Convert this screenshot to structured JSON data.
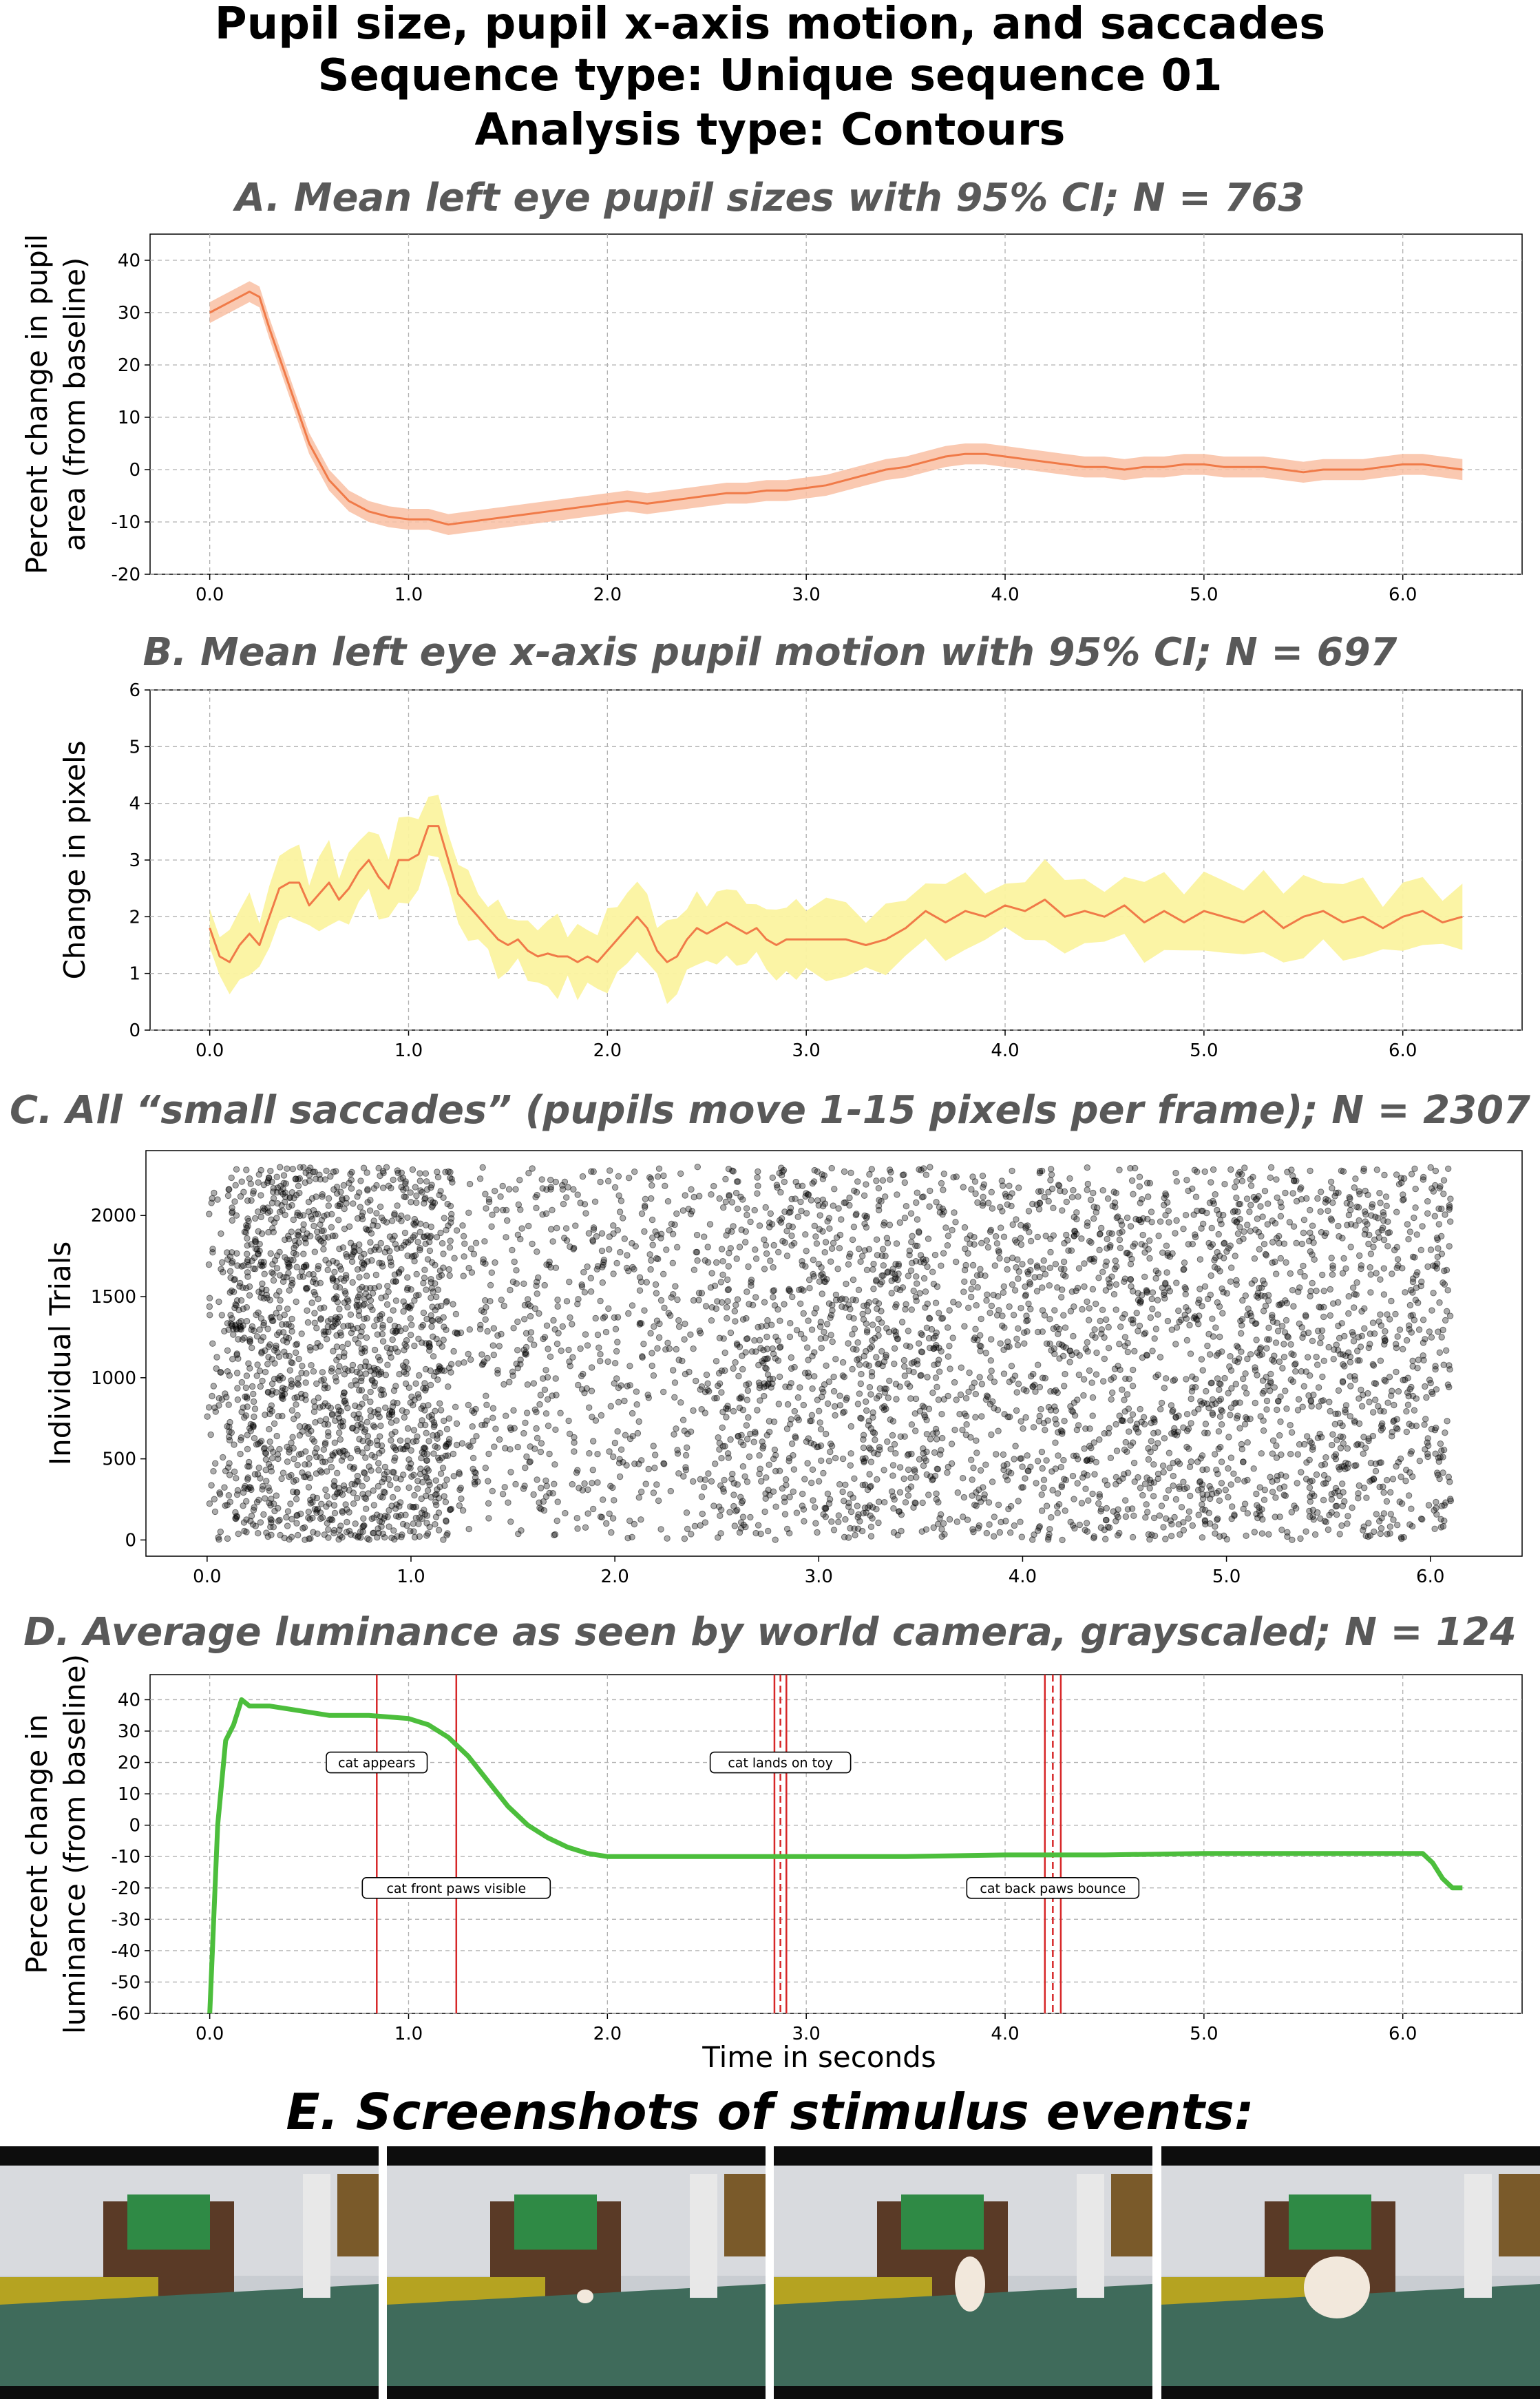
{
  "figure": {
    "title_lines": [
      "Pupil size, pupil x-axis motion, and saccades",
      "Sequence type: Unique sequence 01",
      "Analysis type: Contours"
    ],
    "xlabel": "Time in seconds",
    "screenshots_title": "E. Screenshots of stimulus events:"
  },
  "colors": {
    "pupil_size_line": "#f07a48",
    "pupil_size_ci": "#f9bfa3",
    "motion_line": "#f07a48",
    "motion_ci": "#fbf3a0",
    "scatter": "#000000",
    "luminance": "#4cbe3c",
    "event_line": "#d62728"
  },
  "chart_data": [
    {
      "panel": "A",
      "type": "line",
      "title": "A. Mean left eye pupil sizes with 95% CI; N = 763",
      "ylabel": "Percent change in pupil area (from baseline)",
      "ylabel_lines": [
        "Percent change in pupil",
        "area (from baseline)"
      ],
      "xlim": [
        -0.3,
        6.6
      ],
      "ylim": [
        -20,
        45
      ],
      "xticks": [
        "0.0",
        "1.0",
        "2.0",
        "3.0",
        "4.0",
        "5.0",
        "6.0"
      ],
      "yticks": [
        "-20",
        "-10",
        "0",
        "10",
        "20",
        "30",
        "40"
      ],
      "grid": true,
      "x": [
        0.0,
        0.1,
        0.2,
        0.25,
        0.3,
        0.4,
        0.5,
        0.6,
        0.7,
        0.8,
        0.9,
        1.0,
        1.1,
        1.2,
        1.3,
        1.4,
        1.5,
        1.6,
        1.7,
        1.8,
        1.9,
        2.0,
        2.1,
        2.2,
        2.3,
        2.4,
        2.5,
        2.6,
        2.7,
        2.8,
        2.9,
        3.0,
        3.1,
        3.2,
        3.3,
        3.4,
        3.5,
        3.6,
        3.7,
        3.8,
        3.9,
        4.0,
        4.1,
        4.2,
        4.3,
        4.4,
        4.5,
        4.6,
        4.7,
        4.8,
        4.9,
        5.0,
        5.1,
        5.2,
        5.3,
        5.4,
        5.5,
        5.6,
        5.7,
        5.8,
        5.9,
        6.0,
        6.1,
        6.2,
        6.3
      ],
      "series": [
        {
          "values": [
            30,
            32,
            34,
            33,
            27,
            16,
            5,
            -2,
            -6,
            -8,
            -9,
            -9.5,
            -9.5,
            -10.5,
            -10,
            -9.5,
            -9,
            -8.5,
            -8,
            -7.5,
            -7,
            -6.5,
            -6,
            -6.5,
            -6,
            -5.5,
            -5,
            -4.5,
            -4.5,
            -4,
            -4,
            -3.5,
            -3,
            -2,
            -1,
            0,
            0.5,
            1.5,
            2.5,
            3,
            3,
            2.5,
            2,
            1.5,
            1,
            0.5,
            0.5,
            0,
            0.5,
            0.5,
            1,
            1,
            0.5,
            0.5,
            0.5,
            0,
            -0.5,
            0,
            0,
            0,
            0.5,
            1,
            1,
            0.5,
            0
          ],
          "ci_halfwidth": 2
        }
      ]
    },
    {
      "panel": "B",
      "type": "line",
      "title": "B. Mean left eye x-axis pupil motion with 95% CI; N = 697",
      "ylabel": "Change in pixels",
      "xlim": [
        -0.3,
        6.6
      ],
      "ylim": [
        0,
        6
      ],
      "xticks": [
        "0.0",
        "1.0",
        "2.0",
        "3.0",
        "4.0",
        "5.0",
        "6.0"
      ],
      "yticks": [
        "0",
        "1",
        "2",
        "3",
        "4",
        "5",
        "6"
      ],
      "grid": true,
      "x": [
        0.0,
        0.05,
        0.1,
        0.15,
        0.2,
        0.25,
        0.3,
        0.35,
        0.4,
        0.45,
        0.5,
        0.55,
        0.6,
        0.65,
        0.7,
        0.75,
        0.8,
        0.85,
        0.9,
        0.95,
        1.0,
        1.05,
        1.1,
        1.15,
        1.2,
        1.25,
        1.3,
        1.35,
        1.4,
        1.45,
        1.5,
        1.55,
        1.6,
        1.65,
        1.7,
        1.75,
        1.8,
        1.85,
        1.9,
        1.95,
        2.0,
        2.05,
        2.1,
        2.15,
        2.2,
        2.25,
        2.3,
        2.35,
        2.4,
        2.45,
        2.5,
        2.55,
        2.6,
        2.65,
        2.7,
        2.75,
        2.8,
        2.85,
        2.9,
        2.95,
        3.0,
        3.1,
        3.2,
        3.3,
        3.4,
        3.5,
        3.6,
        3.7,
        3.8,
        3.9,
        4.0,
        4.1,
        4.2,
        4.3,
        4.4,
        4.5,
        4.6,
        4.7,
        4.8,
        4.9,
        5.0,
        5.1,
        5.2,
        5.3,
        5.4,
        5.5,
        5.6,
        5.7,
        5.8,
        5.9,
        6.0,
        6.1,
        6.2,
        6.3
      ],
      "series": [
        {
          "values": [
            1.8,
            1.3,
            1.2,
            1.5,
            1.7,
            1.5,
            2.0,
            2.5,
            2.6,
            2.6,
            2.2,
            2.4,
            2.6,
            2.3,
            2.5,
            2.8,
            3.0,
            2.7,
            2.5,
            3.0,
            3.0,
            3.1,
            3.6,
            3.6,
            3.0,
            2.4,
            2.2,
            2.0,
            1.8,
            1.6,
            1.5,
            1.6,
            1.4,
            1.3,
            1.35,
            1.3,
            1.3,
            1.2,
            1.3,
            1.2,
            1.4,
            1.6,
            1.8,
            2.0,
            1.8,
            1.4,
            1.2,
            1.3,
            1.6,
            1.8,
            1.7,
            1.8,
            1.9,
            1.8,
            1.7,
            1.8,
            1.6,
            1.5,
            1.6,
            1.6,
            1.6,
            1.6,
            1.6,
            1.5,
            1.6,
            1.8,
            2.1,
            1.9,
            2.1,
            2.0,
            2.2,
            2.1,
            2.3,
            2.0,
            2.1,
            2.0,
            2.2,
            1.9,
            2.1,
            1.9,
            2.1,
            2.0,
            1.9,
            2.1,
            1.8,
            2.0,
            2.1,
            1.9,
            2.0,
            1.8,
            2.0,
            2.1,
            1.9,
            2.0
          ],
          "ci_halfwidth": 0.55
        }
      ]
    },
    {
      "panel": "C",
      "type": "scatter",
      "title": "C. All “small saccades” (pupils move 1-15 pixels per frame); N = 2307",
      "ylabel": "Individual Trials",
      "xlim": [
        -0.3,
        6.45
      ],
      "ylim": [
        -100,
        2400
      ],
      "xticks": [
        "0.0",
        "1.0",
        "2.0",
        "3.0",
        "4.0",
        "5.0",
        "6.0"
      ],
      "yticks": [
        "0",
        "500",
        "1000",
        "1500",
        "2000"
      ],
      "grid": false,
      "points_note": "dense scatter; higher density between 0.1 and 1.2 s",
      "density_by_second": [
        {
          "x_range": [
            0.0,
            0.1
          ],
          "relative_density": 0.6
        },
        {
          "x_range": [
            0.1,
            1.2
          ],
          "relative_density": 1.6
        },
        {
          "x_range": [
            1.2,
            2.5
          ],
          "relative_density": 0.55
        },
        {
          "x_range": [
            2.5,
            6.1
          ],
          "relative_density": 0.9
        }
      ]
    },
    {
      "panel": "D",
      "type": "line",
      "title": "D. Average luminance as seen by world camera, grayscaled; N = 124",
      "ylabel": "Percent change in luminance (from baseline)",
      "ylabel_lines": [
        "Percent change in",
        "luminance (from baseline)"
      ],
      "xlabel": "Time in seconds",
      "xlim": [
        -0.3,
        6.6
      ],
      "ylim": [
        -60,
        48
      ],
      "xticks": [
        "0.0",
        "1.0",
        "2.0",
        "3.0",
        "4.0",
        "5.0",
        "6.0"
      ],
      "yticks": [
        "-60",
        "-50",
        "-40",
        "-30",
        "-20",
        "-10",
        "0",
        "10",
        "20",
        "30",
        "40"
      ],
      "grid": true,
      "x": [
        0.0,
        0.04,
        0.08,
        0.12,
        0.16,
        0.2,
        0.3,
        0.4,
        0.6,
        0.8,
        1.0,
        1.1,
        1.2,
        1.3,
        1.4,
        1.5,
        1.6,
        1.7,
        1.8,
        1.9,
        2.0,
        2.1,
        2.5,
        3.0,
        3.5,
        4.0,
        4.5,
        5.0,
        5.5,
        6.0,
        6.1,
        6.15,
        6.2,
        6.25,
        6.3
      ],
      "series": [
        {
          "values": [
            -60,
            0,
            27,
            32,
            40,
            38,
            38,
            37,
            35,
            35,
            34,
            32,
            28,
            22,
            14,
            6,
            0,
            -4,
            -7,
            -9,
            -10,
            -10,
            -10,
            -10,
            -10,
            -9.5,
            -9.5,
            -9,
            -9,
            -9,
            -9,
            -12,
            -17,
            -20,
            -20
          ]
        }
      ],
      "event_lines": [
        {
          "x": 0.84,
          "style": "solid"
        },
        {
          "x": 1.24,
          "style": "solid"
        },
        {
          "x": 2.84,
          "style": "solid"
        },
        {
          "x": 2.87,
          "style": "dashed"
        },
        {
          "x": 2.9,
          "style": "solid"
        },
        {
          "x": 4.2,
          "style": "solid"
        },
        {
          "x": 4.24,
          "style": "dashed"
        },
        {
          "x": 4.28,
          "style": "solid"
        }
      ],
      "annotations": [
        {
          "text": "cat appears",
          "x": 0.84,
          "y": 20
        },
        {
          "text": "cat front paws visible",
          "x": 1.24,
          "y": -20
        },
        {
          "text": "cat lands on toy",
          "x": 2.87,
          "y": 20
        },
        {
          "text": "cat back paws bounce",
          "x": 4.24,
          "y": -20
        }
      ]
    }
  ]
}
